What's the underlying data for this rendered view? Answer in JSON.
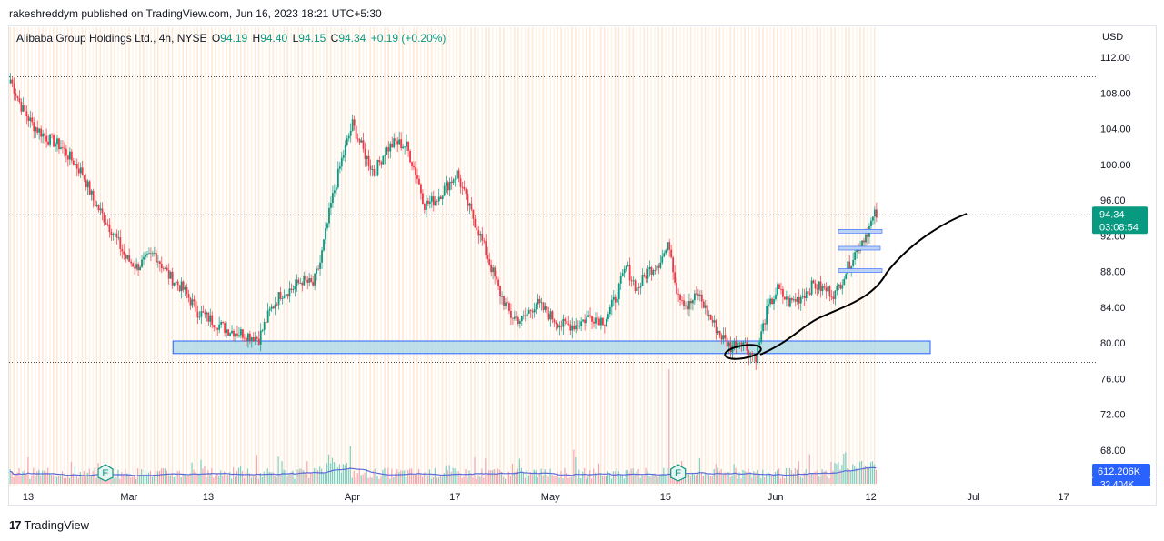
{
  "header": {
    "published_by": "rakeshreddym published on TradingView.com, Jun 16, 2023 18:21 UTC+5:30"
  },
  "legend": {
    "symbol": "Alibaba Group Holdings Ltd., 4h, NYSE",
    "o_label": "O",
    "o": "94.19",
    "h_label": "H",
    "h": "94.40",
    "l_label": "L",
    "l": "94.15",
    "c_label": "C",
    "c": "94.34",
    "change": "+0.19 (+0.20%)"
  },
  "footer": {
    "brand": "TradingView",
    "logo_text": "17"
  },
  "colors": {
    "up": "#089981",
    "down": "#f23645",
    "box_fill": "#add8e6",
    "box_stroke": "#2962ff",
    "price_tag": "#089981",
    "volume_tag": "#2962ff",
    "vol_ma": "#5b6bd8"
  },
  "chart_data": {
    "type": "candlestick",
    "currency": "USD",
    "price_axis": {
      "ticks": [
        "112.00",
        "108.00",
        "104.00",
        "100.00",
        "96.00",
        "92.00",
        "88.00",
        "84.00",
        "80.00",
        "76.00",
        "72.00",
        "68.00"
      ],
      "range": [
        64.5,
        114.5
      ]
    },
    "time_axis": {
      "labels": [
        "13",
        "Mar",
        "13",
        "Apr",
        "17",
        "May",
        "15",
        "Jun",
        "12",
        "Jul",
        "17"
      ],
      "bar_index": [
        0,
        56,
        100,
        180,
        237,
        290,
        354,
        415,
        468,
        525,
        575
      ]
    },
    "current_price": "94.34",
    "countdown": "03:08:54",
    "volume_label": "612.206K",
    "hidden_volume_label": "32.404K",
    "horizontal_lines": [
      109.8,
      94.34,
      77.8
    ],
    "support_zone": {
      "low": 79.0,
      "high": 80.0,
      "start_index": 87,
      "end_index": 500
    },
    "earnings_markers": [
      {
        "index": 48,
        "label": "E"
      },
      {
        "index": 366,
        "label": "E"
      }
    ],
    "anchors": [
      [
        0,
        109.5
      ],
      [
        6,
        106.5
      ],
      [
        12,
        104.5
      ],
      [
        20,
        103
      ],
      [
        28,
        102
      ],
      [
        34,
        100.5
      ],
      [
        40,
        99
      ],
      [
        46,
        96
      ],
      [
        52,
        94
      ],
      [
        58,
        92
      ],
      [
        64,
        89.5
      ],
      [
        70,
        88.5
      ],
      [
        80,
        90
      ],
      [
        88,
        87.5
      ],
      [
        96,
        86
      ],
      [
        104,
        83.5
      ],
      [
        112,
        82.5
      ],
      [
        120,
        81.5
      ],
      [
        130,
        81
      ],
      [
        138,
        80.5
      ],
      [
        144,
        83.5
      ],
      [
        150,
        85.5
      ],
      [
        156,
        86
      ],
      [
        162,
        87
      ],
      [
        168,
        86.5
      ],
      [
        172,
        89
      ],
      [
        178,
        95.5
      ],
      [
        184,
        100.5
      ],
      [
        190,
        104.5
      ],
      [
        196,
        101.5
      ],
      [
        202,
        99
      ],
      [
        208,
        101.5
      ],
      [
        214,
        102.5
      ],
      [
        220,
        102
      ],
      [
        226,
        98.5
      ],
      [
        230,
        95.5
      ],
      [
        236,
        96
      ],
      [
        242,
        97.5
      ],
      [
        248,
        99
      ],
      [
        254,
        95.5
      ],
      [
        260,
        92.5
      ],
      [
        266,
        89
      ],
      [
        272,
        85.5
      ],
      [
        278,
        83
      ],
      [
        284,
        82.5
      ],
      [
        292,
        84.5
      ],
      [
        300,
        83
      ],
      [
        306,
        82
      ],
      [
        314,
        82
      ],
      [
        322,
        83
      ],
      [
        330,
        82.5
      ],
      [
        336,
        85
      ],
      [
        342,
        88.5
      ],
      [
        348,
        86
      ],
      [
        354,
        88
      ],
      [
        360,
        89
      ],
      [
        366,
        91
      ],
      [
        370,
        86
      ],
      [
        376,
        84
      ],
      [
        382,
        85.5
      ],
      [
        388,
        83
      ],
      [
        394,
        81
      ],
      [
        400,
        79.5
      ],
      [
        406,
        80.5
      ],
      [
        410,
        79
      ],
      [
        414,
        78.5
      ],
      [
        420,
        83.5
      ],
      [
        426,
        86
      ],
      [
        432,
        84.5
      ],
      [
        438,
        85
      ],
      [
        446,
        86.5
      ],
      [
        452,
        86
      ],
      [
        458,
        85.5
      ],
      [
        464,
        88
      ],
      [
        470,
        90.5
      ],
      [
        476,
        92.5
      ],
      [
        480,
        94.3
      ]
    ],
    "n_bars": 482
  }
}
